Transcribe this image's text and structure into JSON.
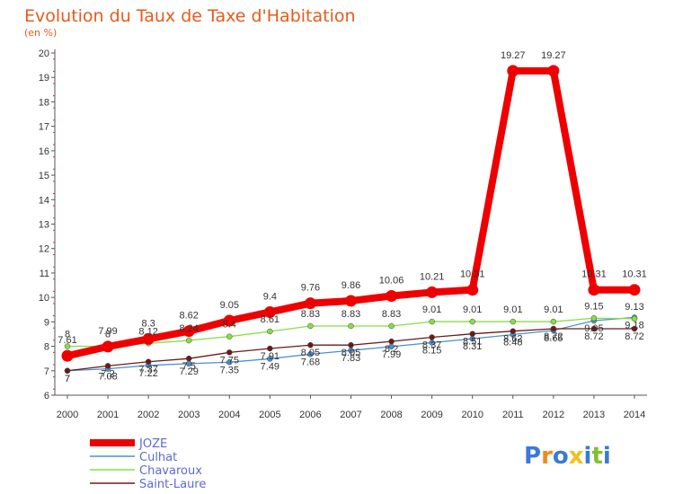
{
  "chart_data": {
    "type": "line",
    "title": "Evolution du Taux de Taxe d'Habitation",
    "subtitle": "(en %)",
    "x": [
      "2000",
      "2001",
      "2002",
      "2003",
      "2004",
      "2005",
      "2006",
      "2007",
      "2008",
      "2009",
      "2010",
      "2011",
      "2012",
      "2013",
      "2014"
    ],
    "ylim": [
      6,
      20
    ],
    "yticks": [
      6,
      7,
      8,
      9,
      10,
      11,
      12,
      13,
      14,
      15,
      16,
      17,
      18,
      19,
      20
    ],
    "grid": false,
    "legend_position": "bottom-left",
    "series": [
      {
        "name": "JOZE",
        "color": "#ee0000",
        "values": [
          7.61,
          7.99,
          8.3,
          8.62,
          9.05,
          9.4,
          9.76,
          9.86,
          10.06,
          10.21,
          10.31,
          19.27,
          19.27,
          10.31,
          10.31
        ]
      },
      {
        "name": "Culhat",
        "color": "#4a90d0",
        "values": [
          7.0,
          7.08,
          7.22,
          7.29,
          7.35,
          7.49,
          7.68,
          7.83,
          7.99,
          8.15,
          8.31,
          8.48,
          8.65,
          9.05,
          9.18
        ]
      },
      {
        "name": "Chavaroux",
        "color": "#88dd44",
        "values": [
          8.0,
          8.0,
          8.12,
          8.24,
          8.4,
          8.61,
          8.83,
          8.83,
          8.83,
          9.01,
          9.01,
          9.01,
          9.01,
          9.15,
          9.13
        ]
      },
      {
        "name": "Saint-Laure",
        "color": "#6b1a1a",
        "values": [
          7.0,
          7.2,
          7.37,
          7.5,
          7.75,
          7.91,
          8.05,
          8.05,
          8.2,
          8.37,
          8.51,
          8.62,
          8.72,
          8.72,
          8.72
        ]
      }
    ]
  },
  "logo": {
    "text": "Proxiti",
    "colors": [
      "#3a7ad8",
      "#f08a1a",
      "#3a7ad8",
      "#f0c020",
      "#3a7ad8",
      "#80c030",
      "#3a7ad8"
    ]
  }
}
